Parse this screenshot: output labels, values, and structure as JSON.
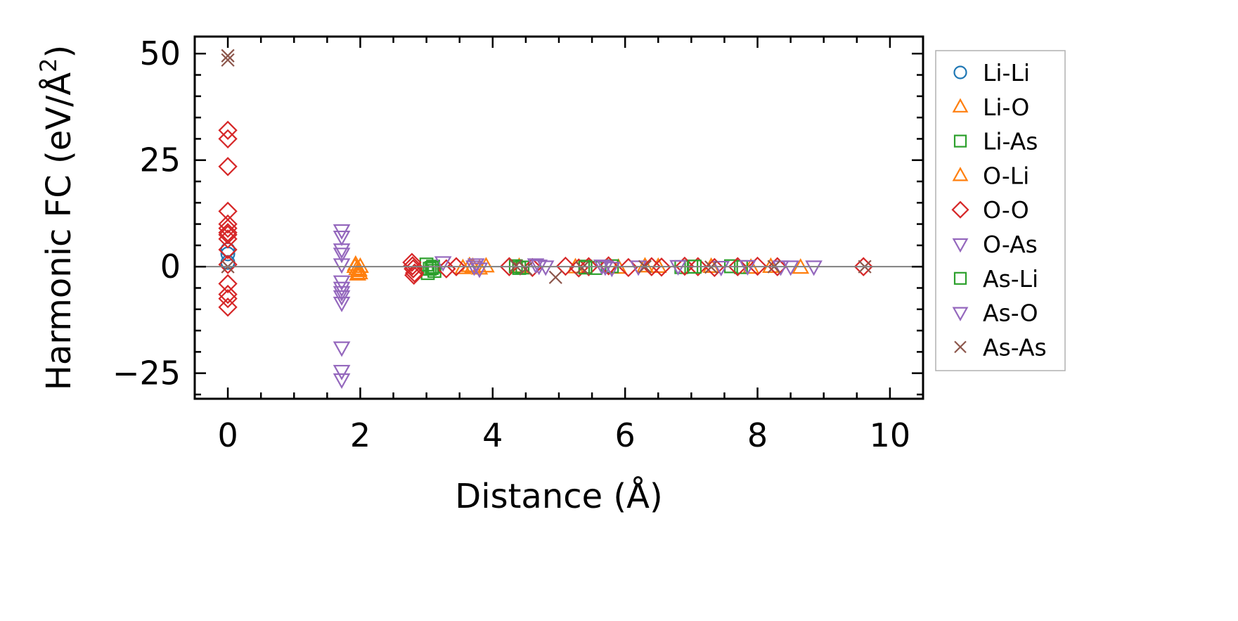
{
  "chart_data": {
    "type": "scatter",
    "xlabel": "Distance (Å)",
    "ylabel_main": "Harmonic FC (eV/Å",
    "ylabel_sup": "2",
    "ylabel_close": ")",
    "xlim": [
      -0.5,
      10.5
    ],
    "ylim": [
      -31,
      54
    ],
    "x_ticks": [
      0,
      2,
      4,
      6,
      8,
      10
    ],
    "x_tick_labels": [
      "0",
      "2",
      "4",
      "6",
      "8",
      "10"
    ],
    "y_ticks": [
      -25,
      0,
      25,
      50
    ],
    "y_tick_labels": [
      "−25",
      "0",
      "25",
      "50"
    ],
    "x_minor_step": 0.5,
    "y_minor_step": 5,
    "zero_line": true,
    "grid": false,
    "legend_position": "outside-right",
    "series": [
      {
        "name": "Li-Li",
        "marker": "circle",
        "color": "#1f77b4",
        "points": [
          [
            0,
            4.0
          ],
          [
            0,
            3.0
          ],
          [
            0,
            1.0
          ]
        ]
      },
      {
        "name": "Li-O",
        "marker": "triangle-up",
        "color": "#ff7f0e",
        "points": [
          [
            1.93,
            0.5
          ],
          [
            1.95,
            -0.5
          ],
          [
            1.97,
            -1.0
          ],
          [
            1.99,
            -1.5
          ],
          [
            2.0,
            0.0
          ],
          [
            1.96,
            -1.8
          ],
          [
            3.55,
            -0.3
          ],
          [
            3.65,
            0.2
          ],
          [
            3.8,
            -0.4
          ],
          [
            3.9,
            0.1
          ],
          [
            4.4,
            0.0
          ],
          [
            5.9,
            -0.2
          ],
          [
            6.3,
            0.1
          ],
          [
            7.9,
            -0.2
          ],
          [
            8.2,
            0.0
          ],
          [
            8.65,
            -0.2
          ]
        ]
      },
      {
        "name": "Li-As",
        "marker": "square",
        "color": "#2ca02c",
        "points": [
          [
            3.0,
            0.5
          ],
          [
            3.05,
            -0.5
          ],
          [
            3.1,
            0.0
          ],
          [
            3.12,
            -1.0
          ],
          [
            3.02,
            -1.5
          ],
          [
            4.35,
            0.1
          ],
          [
            4.45,
            -0.2
          ],
          [
            5.4,
            0.0
          ],
          [
            5.55,
            -0.3
          ],
          [
            5.8,
            0.1
          ],
          [
            6.85,
            -0.1
          ],
          [
            7.0,
            0.0
          ],
          [
            7.6,
            0.1
          ],
          [
            7.75,
            -0.1
          ]
        ]
      },
      {
        "name": "O-Li",
        "marker": "triangle-up",
        "color": "#ff7f0e",
        "points": [
          [
            1.92,
            0.0
          ],
          [
            1.98,
            -0.8
          ],
          [
            3.7,
            0.0
          ],
          [
            5.25,
            -0.1
          ],
          [
            6.5,
            0.0
          ],
          [
            7.3,
            0.0
          ]
        ]
      },
      {
        "name": "O-O",
        "marker": "diamond",
        "color": "#d62728",
        "points": [
          [
            0,
            32.0
          ],
          [
            0,
            30.0
          ],
          [
            0,
            23.5
          ],
          [
            0,
            13.0
          ],
          [
            0,
            10.0
          ],
          [
            0,
            9.0
          ],
          [
            0,
            8.0
          ],
          [
            0,
            7.5
          ],
          [
            0,
            6.5
          ],
          [
            0,
            4.0
          ],
          [
            0,
            0.5
          ],
          [
            0,
            -4.0
          ],
          [
            0,
            -6.5
          ],
          [
            0,
            -7.5
          ],
          [
            0,
            -9.5
          ],
          [
            2.78,
            1.0
          ],
          [
            2.8,
            -0.5
          ],
          [
            2.82,
            -1.5
          ],
          [
            2.79,
            0.2
          ],
          [
            2.81,
            -2.0
          ],
          [
            3.3,
            -0.5
          ],
          [
            3.45,
            0.0
          ],
          [
            4.25,
            0.0
          ],
          [
            4.6,
            -0.2
          ],
          [
            5.1,
            0.1
          ],
          [
            5.3,
            -0.3
          ],
          [
            5.45,
            0.0
          ],
          [
            5.75,
            0.2
          ],
          [
            6.05,
            -0.2
          ],
          [
            6.4,
            0.0
          ],
          [
            6.55,
            -0.1
          ],
          [
            6.9,
            0.1
          ],
          [
            7.1,
            0.0
          ],
          [
            7.35,
            -0.2
          ],
          [
            7.7,
            0.0
          ],
          [
            8.0,
            0.1
          ],
          [
            8.3,
            0.0
          ],
          [
            9.6,
            0.0
          ]
        ]
      },
      {
        "name": "O-As",
        "marker": "triangle-down",
        "color": "#9467bd",
        "points": [
          [
            1.72,
            8.5
          ],
          [
            1.72,
            7.0
          ],
          [
            1.72,
            4.0
          ],
          [
            1.72,
            0.5
          ],
          [
            1.72,
            -3.5
          ],
          [
            1.72,
            -5.0
          ],
          [
            1.72,
            -7.0
          ],
          [
            1.72,
            -8.5
          ],
          [
            1.72,
            -19.0
          ],
          [
            1.72,
            -24.5
          ],
          [
            1.72,
            -26.5
          ],
          [
            3.25,
            1.0
          ],
          [
            3.75,
            0.5
          ],
          [
            3.8,
            -0.5
          ],
          [
            4.65,
            0.5
          ],
          [
            4.8,
            0.0
          ],
          [
            5.65,
            0.2
          ],
          [
            5.8,
            -0.3
          ],
          [
            6.2,
            0.0
          ],
          [
            6.8,
            0.1
          ],
          [
            7.45,
            -0.1
          ],
          [
            8.5,
            0.0
          ],
          [
            8.85,
            0.0
          ]
        ]
      },
      {
        "name": "As-Li",
        "marker": "square",
        "color": "#2ca02c",
        "points": [
          [
            3.08,
            -0.3
          ],
          [
            4.4,
            -0.3
          ],
          [
            5.4,
            -0.2
          ],
          [
            7.05,
            0.0
          ]
        ]
      },
      {
        "name": "As-O",
        "marker": "triangle-down",
        "color": "#9467bd",
        "points": [
          [
            1.72,
            3.0
          ],
          [
            1.72,
            -6.0
          ],
          [
            3.72,
            0.0
          ],
          [
            4.7,
            0.2
          ],
          [
            5.7,
            0.0
          ],
          [
            7.85,
            0.1
          ],
          [
            8.35,
            0.0
          ]
        ]
      },
      {
        "name": "As-As",
        "marker": "x",
        "color": "#8c564b",
        "points": [
          [
            0,
            49.5
          ],
          [
            0,
            48.5
          ],
          [
            0,
            0.0
          ],
          [
            4.35,
            0.2
          ],
          [
            4.5,
            -0.5
          ],
          [
            4.95,
            -2.5
          ],
          [
            5.35,
            -0.3
          ],
          [
            6.3,
            0.0
          ],
          [
            7.3,
            -0.1
          ],
          [
            8.25,
            0.0
          ],
          [
            9.62,
            0.0
          ]
        ]
      }
    ]
  }
}
